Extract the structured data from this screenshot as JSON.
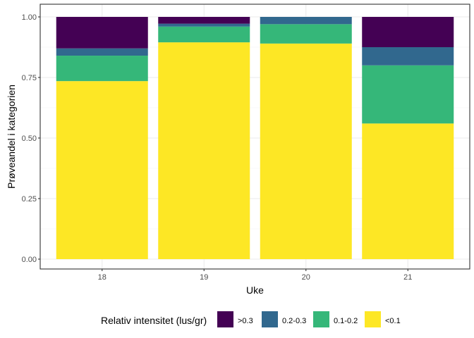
{
  "chart_data": {
    "type": "bar",
    "stacked": true,
    "title": "",
    "xlabel": "Uke",
    "ylabel": "Prøveandel i kategorien",
    "categories": [
      "18",
      "19",
      "20",
      "21"
    ],
    "ylim": [
      0,
      1
    ],
    "yticks": [
      0,
      0.25,
      0.5,
      0.75,
      1
    ],
    "ytick_labels": [
      "0.00",
      "0.25",
      "0.50",
      "0.75",
      "1.00"
    ],
    "grid": true,
    "legend_position": "bottom",
    "legend_title": "Relativ intensitet (lus/gr)",
    "series": [
      {
        "name": "<0.1",
        "color": "#FDE725",
        "values": [
          0.735,
          0.895,
          0.89,
          0.56
        ]
      },
      {
        "name": "0.1-0.2",
        "color": "#35B779",
        "values": [
          0.105,
          0.065,
          0.08,
          0.24
        ]
      },
      {
        "name": "0.2-0.3",
        "color": "#31688E",
        "values": [
          0.03,
          0.012,
          0.03,
          0.075
        ]
      },
      {
        "name": ">0.3",
        "color": "#440154",
        "values": [
          0.13,
          0.028,
          0.0,
          0.125
        ]
      }
    ],
    "legend_order": [
      ">0.3",
      "0.2-0.3",
      "0.1-0.2",
      "<0.1"
    ]
  }
}
